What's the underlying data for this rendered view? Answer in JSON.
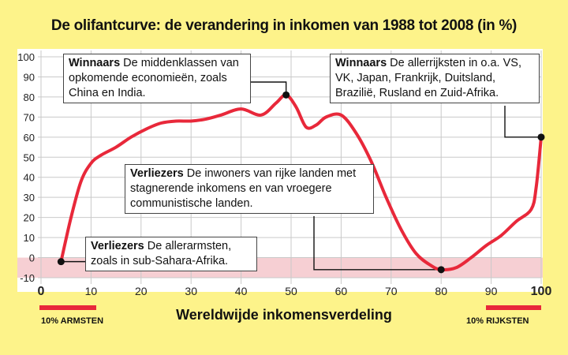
{
  "title": "De olifantcurve: de verandering in inkomen van 1988 tot 2008 (in %)",
  "colors": {
    "background": "#fdf38a",
    "line": "#e8283a",
    "negative_band": "#f6cfd3",
    "marker": "#111111"
  },
  "chart_data": {
    "type": "line",
    "title": "De olifantcurve: de verandering in inkomen van 1988 tot 2008 (in %)",
    "xlabel": "Wereldwijde inkomensverdeling",
    "ylabel": "",
    "xlim": [
      0,
      100
    ],
    "ylim": [
      -10,
      100
    ],
    "x_ticks": [
      0,
      10,
      20,
      30,
      40,
      50,
      60,
      70,
      80,
      90,
      100
    ],
    "y_ticks": [
      -10,
      0,
      10,
      20,
      30,
      40,
      50,
      60,
      70,
      80,
      90,
      100
    ],
    "grid": true,
    "series": [
      {
        "name": "Verandering in inkomen",
        "x": [
          4,
          6,
          8,
          10,
          12,
          15,
          18,
          21,
          24,
          27,
          30,
          33,
          36,
          40,
          44,
          47,
          49,
          51,
          53,
          55,
          57,
          60,
          63,
          66,
          69,
          72,
          75,
          78,
          80,
          83,
          86,
          89,
          92,
          95,
          98,
          99,
          100
        ],
        "y": [
          -2,
          20,
          38,
          47,
          51,
          55,
          60,
          64,
          67,
          68,
          68,
          69,
          71,
          74,
          71,
          77,
          81,
          75,
          65,
          66,
          70,
          71,
          62,
          48,
          30,
          14,
          2,
          -4,
          -6,
          -5,
          0,
          6,
          11,
          18,
          24,
          35,
          60
        ]
      }
    ],
    "highlighted_points": [
      {
        "x": 4,
        "y": -2
      },
      {
        "x": 49,
        "y": 81
      },
      {
        "x": 80,
        "y": -6
      },
      {
        "x": 100,
        "y": 60
      }
    ]
  },
  "annotations": [
    {
      "id": "a1",
      "bold": "Winnaars",
      "text": " De middenklassen van opkomende economieën, zoals China en India."
    },
    {
      "id": "a2",
      "bold": "Winnaars",
      "text": " De allerrijksten in o.a. VS, VK, Japan, Frankrijk, Duitsland, Brazilië, Rusland en Zuid-Afrika."
    },
    {
      "id": "a3",
      "bold": "Verliezers",
      "text": " De inwoners van rijke landen met stagnerende inkomens  en van vroegere  communistische landen."
    },
    {
      "id": "a4",
      "bold": "Verliezers",
      "text": " De allerarmsten, zoals in sub-Sahara-Afrika."
    }
  ],
  "bottom": {
    "left_label": "10% ARMSTEN",
    "right_label": "10% RIJKSTEN"
  }
}
